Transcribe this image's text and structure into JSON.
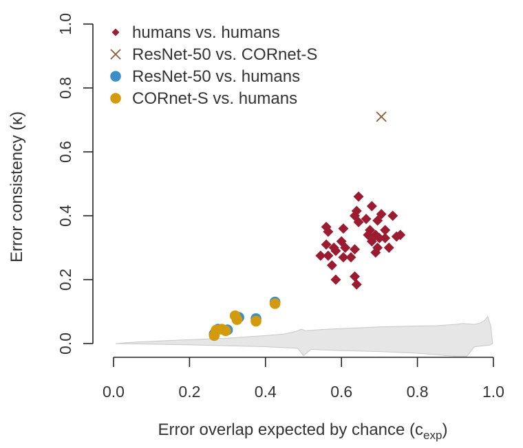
{
  "chart_data": {
    "type": "scatter",
    "xlabel": "Error overlap expected by chance (c",
    "xlabel_sub": "exp",
    "xlabel_end": ")",
    "ylabel": "Error consistency (κ)",
    "xlim": [
      0.0,
      1.0
    ],
    "ylim": [
      0.0,
      1.0
    ],
    "x_ticks": [
      0.0,
      0.2,
      0.4,
      0.6,
      0.8,
      1.0
    ],
    "y_ticks": [
      0.0,
      0.2,
      0.4,
      0.6,
      0.8,
      1.0
    ],
    "x_tick_labels": [
      "0.0",
      "0.2",
      "0.4",
      "0.6",
      "0.8",
      "1.0"
    ],
    "y_tick_labels": [
      "0.0",
      "0.2",
      "0.4",
      "0.6",
      "0.8",
      "1.0"
    ],
    "grid": false,
    "legend_position": "top-left",
    "series": [
      {
        "name": "humans vs. humans",
        "marker": "diamond",
        "color": "#9b1b30",
        "points": [
          [
            0.645,
            0.46
          ],
          [
            0.68,
            0.43
          ],
          [
            0.64,
            0.415
          ],
          [
            0.705,
            0.405
          ],
          [
            0.635,
            0.4
          ],
          [
            0.735,
            0.4
          ],
          [
            0.665,
            0.39
          ],
          [
            0.695,
            0.385
          ],
          [
            0.645,
            0.38
          ],
          [
            0.56,
            0.365
          ],
          [
            0.605,
            0.36
          ],
          [
            0.715,
            0.355
          ],
          [
            0.675,
            0.355
          ],
          [
            0.565,
            0.35
          ],
          [
            0.67,
            0.34
          ],
          [
            0.69,
            0.34
          ],
          [
            0.755,
            0.34
          ],
          [
            0.745,
            0.335
          ],
          [
            0.715,
            0.33
          ],
          [
            0.7,
            0.33
          ],
          [
            0.68,
            0.32
          ],
          [
            0.6,
            0.32
          ],
          [
            0.56,
            0.31
          ],
          [
            0.58,
            0.3
          ],
          [
            0.61,
            0.3
          ],
          [
            0.695,
            0.3
          ],
          [
            0.725,
            0.3
          ],
          [
            0.635,
            0.295
          ],
          [
            0.585,
            0.29
          ],
          [
            0.69,
            0.285
          ],
          [
            0.545,
            0.275
          ],
          [
            0.565,
            0.275
          ],
          [
            0.605,
            0.27
          ],
          [
            0.625,
            0.27
          ],
          [
            0.575,
            0.245
          ],
          [
            0.635,
            0.21
          ],
          [
            0.585,
            0.2
          ],
          [
            0.64,
            0.185
          ]
        ]
      },
      {
        "name": "ResNet-50 vs. CORnet-S",
        "marker": "cross",
        "color": "#8b5a3c",
        "points": [
          [
            0.705,
            0.71
          ]
        ]
      },
      {
        "name": "ResNet-50 vs. humans",
        "marker": "circle",
        "color": "#3b8fc4",
        "points": [
          [
            0.425,
            0.13
          ],
          [
            0.33,
            0.082
          ],
          [
            0.375,
            0.078
          ],
          [
            0.275,
            0.045
          ],
          [
            0.3,
            0.043
          ],
          [
            0.265,
            0.03
          ]
        ]
      },
      {
        "name": "CORnet-S vs. humans",
        "marker": "circle",
        "color": "#d49a0e",
        "points": [
          [
            0.425,
            0.125
          ],
          [
            0.32,
            0.087
          ],
          [
            0.325,
            0.075
          ],
          [
            0.375,
            0.07
          ],
          [
            0.285,
            0.045
          ],
          [
            0.27,
            0.042
          ],
          [
            0.295,
            0.04
          ],
          [
            0.265,
            0.025
          ]
        ]
      }
    ],
    "band": {
      "color": "#e6e6e6",
      "stroke": "#c8c8c8",
      "upper": [
        [
          0.005,
          0.0
        ],
        [
          0.05,
          0.004
        ],
        [
          0.1,
          0.007
        ],
        [
          0.2,
          0.012
        ],
        [
          0.3,
          0.017
        ],
        [
          0.4,
          0.025
        ],
        [
          0.45,
          0.03
        ],
        [
          0.48,
          0.038
        ],
        [
          0.495,
          0.045
        ],
        [
          0.505,
          0.04
        ],
        [
          0.55,
          0.044
        ],
        [
          0.6,
          0.047
        ],
        [
          0.7,
          0.052
        ],
        [
          0.8,
          0.055
        ],
        [
          0.85,
          0.056
        ],
        [
          0.9,
          0.06
        ],
        [
          0.92,
          0.063
        ],
        [
          0.95,
          0.06
        ],
        [
          0.965,
          0.065
        ],
        [
          0.975,
          0.07
        ],
        [
          0.985,
          0.085
        ],
        [
          0.993,
          0.055
        ],
        [
          0.998,
          0.0
        ]
      ],
      "lower": [
        [
          0.998,
          0.0
        ],
        [
          0.99,
          -0.005
        ],
        [
          0.95,
          -0.01
        ],
        [
          0.93,
          -0.04
        ],
        [
          0.9,
          -0.04
        ],
        [
          0.85,
          -0.035
        ],
        [
          0.8,
          -0.03
        ],
        [
          0.7,
          -0.025
        ],
        [
          0.6,
          -0.022
        ],
        [
          0.55,
          -0.02
        ],
        [
          0.52,
          -0.018
        ],
        [
          0.5,
          -0.038
        ],
        [
          0.485,
          -0.015
        ],
        [
          0.45,
          -0.013
        ],
        [
          0.4,
          -0.01
        ],
        [
          0.3,
          -0.007
        ],
        [
          0.2,
          -0.004
        ],
        [
          0.1,
          -0.002
        ],
        [
          0.005,
          0.0
        ]
      ]
    }
  }
}
